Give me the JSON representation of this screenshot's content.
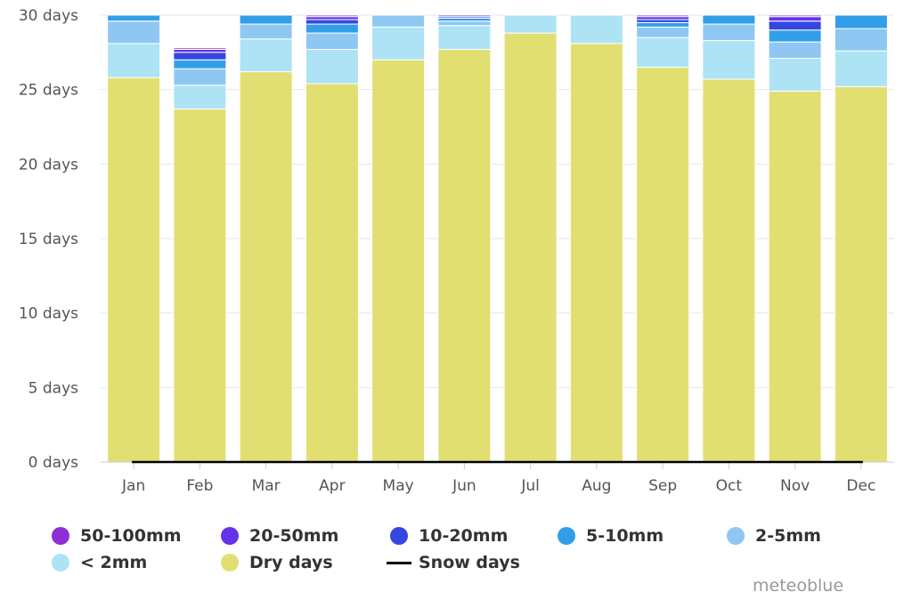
{
  "chart_data": {
    "type": "bar",
    "stacked": true,
    "categories": [
      "Jan",
      "Feb",
      "Mar",
      "Apr",
      "May",
      "Jun",
      "Jul",
      "Aug",
      "Sep",
      "Oct",
      "Nov",
      "Dec"
    ],
    "ylim": [
      0,
      30
    ],
    "yticks": [
      "0 days",
      "5 days",
      "10 days",
      "15 days",
      "20 days",
      "25 days",
      "30 days"
    ],
    "ytick_values": [
      0,
      5,
      10,
      15,
      20,
      25,
      30
    ],
    "grid": true,
    "legend_position": "bottom",
    "series": [
      {
        "name": "Dry days",
        "color": "#e2df72",
        "values": [
          25.8,
          23.7,
          26.2,
          25.4,
          27.0,
          27.7,
          28.8,
          28.1,
          26.5,
          25.7,
          24.9,
          25.2
        ]
      },
      {
        "name": "< 2mm",
        "color": "#aee3f5",
        "values": [
          2.3,
          1.6,
          2.2,
          2.3,
          2.2,
          1.6,
          1.2,
          1.9,
          2.0,
          2.6,
          2.2,
          2.4
        ]
      },
      {
        "name": "2-5mm",
        "color": "#8ec8f2",
        "values": [
          1.5,
          1.1,
          1.0,
          1.1,
          0.8,
          0.3,
          0.0,
          0.0,
          0.7,
          1.1,
          1.1,
          1.5
        ]
      },
      {
        "name": "5-10mm",
        "color": "#339ee8",
        "values": [
          0.4,
          0.6,
          0.6,
          0.6,
          0.0,
          0.2,
          0.0,
          0.0,
          0.3,
          0.6,
          0.8,
          0.9
        ]
      },
      {
        "name": "10-20mm",
        "color": "#3446e0",
        "values": [
          0.0,
          0.5,
          0.0,
          0.3,
          0.0,
          0.1,
          0.0,
          0.0,
          0.2,
          0.0,
          0.6,
          0.0
        ]
      },
      {
        "name": "20-50mm",
        "color": "#6333e8",
        "values": [
          0.0,
          0.2,
          0.0,
          0.2,
          0.0,
          0.1,
          0.0,
          0.0,
          0.2,
          0.0,
          0.3,
          0.0
        ]
      },
      {
        "name": "50-100mm",
        "color": "#8e2fd6",
        "values": [
          0.0,
          0.1,
          0.0,
          0.1,
          0.0,
          0.0,
          0.0,
          0.0,
          0.1,
          0.0,
          0.1,
          0.0
        ]
      }
    ],
    "snow_days": {
      "name": "Snow days",
      "color": "#000000",
      "values": [
        0,
        0,
        0,
        0,
        0,
        0,
        0,
        0,
        0,
        0,
        0,
        0
      ]
    }
  },
  "legend": {
    "row1": [
      "50-100mm",
      "20-50mm",
      "10-20mm",
      "5-10mm",
      "2-5mm"
    ],
    "row2": [
      "< 2mm",
      "Dry days",
      "Snow days"
    ]
  },
  "credit": "meteoblue"
}
